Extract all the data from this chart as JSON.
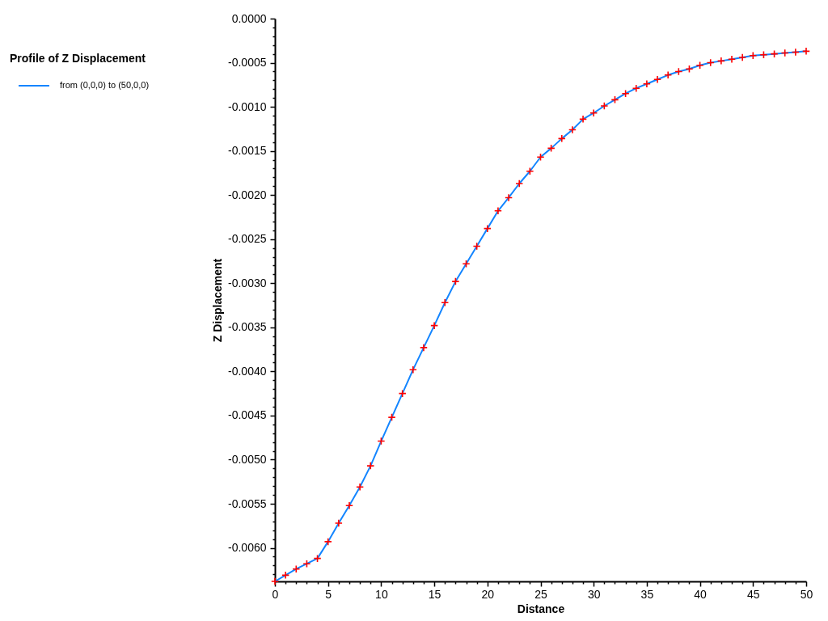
{
  "chart_data": {
    "type": "line",
    "legend_title": "Profile of Z Displacement",
    "xlabel": "Distance",
    "ylabel": "Z Displacement",
    "x": [
      0,
      1,
      2,
      3,
      4,
      5,
      6,
      7,
      8,
      9,
      10,
      11,
      12,
      13,
      14,
      15,
      16,
      17,
      18,
      19,
      20,
      21,
      22,
      23,
      24,
      25,
      26,
      27,
      28,
      29,
      30,
      31,
      32,
      33,
      34,
      35,
      36,
      37,
      38,
      39,
      40,
      41,
      42,
      43,
      44,
      45,
      46,
      47,
      48,
      49,
      50
    ],
    "series": [
      {
        "name": "from (0,0,0) to (50,0,0)",
        "color": "#1385ff",
        "values": [
          -0.00638,
          -0.00631,
          -0.00624,
          -0.00618,
          -0.00612,
          -0.00593,
          -0.00572,
          -0.00552,
          -0.00531,
          -0.00507,
          -0.00479,
          -0.00452,
          -0.00425,
          -0.00398,
          -0.00373,
          -0.00348,
          -0.00322,
          -0.00298,
          -0.00278,
          -0.00258,
          -0.00238,
          -0.00218,
          -0.00203,
          -0.00187,
          -0.00173,
          -0.00157,
          -0.00147,
          -0.00136,
          -0.00126,
          -0.00114,
          -0.00107,
          -0.00099,
          -0.00092,
          -0.00085,
          -0.00079,
          -0.00074,
          -0.00069,
          -0.00064,
          -0.0006,
          -0.00057,
          -0.00053,
          -0.0005,
          -0.00048,
          -0.00046,
          -0.00044,
          -0.00042,
          -0.00041,
          -0.0004,
          -0.00039,
          -0.00038,
          -0.00037
        ]
      }
    ],
    "xlim": [
      0,
      50
    ],
    "ylim": [
      -0.00638,
      0
    ],
    "xticks": [
      0,
      {
        "value": 1,
        "label": null
      },
      {
        "value": 2,
        "label": null
      },
      {
        "value": 3,
        "label": null
      },
      {
        "value": 4,
        "label": null
      },
      5,
      {
        "value": 6,
        "label": null
      },
      {
        "value": 7,
        "label": null
      },
      {
        "value": 8,
        "label": null
      },
      {
        "value": 9,
        "label": null
      },
      10,
      {
        "value": 11,
        "label": null
      },
      {
        "value": 12,
        "label": null
      },
      {
        "value": 13,
        "label": null
      },
      {
        "value": 14,
        "label": null
      },
      15,
      {
        "value": 16,
        "label": null
      },
      {
        "value": 17,
        "label": null
      },
      {
        "value": 18,
        "label": null
      },
      {
        "value": 19,
        "label": null
      },
      20,
      {
        "value": 21,
        "label": null
      },
      {
        "value": 22,
        "label": null
      },
      {
        "value": 23,
        "label": null
      },
      {
        "value": 24,
        "label": null
      },
      25,
      {
        "value": 26,
        "label": null
      },
      {
        "value": 27,
        "label": null
      },
      {
        "value": 28,
        "label": null
      },
      {
        "value": 29,
        "label": null
      },
      30,
      {
        "value": 31,
        "label": null
      },
      {
        "value": 32,
        "label": null
      },
      {
        "value": 33,
        "label": null
      },
      {
        "value": 34,
        "label": null
      },
      35,
      {
        "value": 36,
        "label": null
      },
      {
        "value": 37,
        "label": null
      },
      {
        "value": 38,
        "label": null
      },
      {
        "value": 39,
        "label": null
      },
      40,
      {
        "value": 41,
        "label": null
      },
      {
        "value": 42,
        "label": null
      },
      {
        "value": 43,
        "label": null
      },
      {
        "value": 44,
        "label": null
      },
      45,
      {
        "value": 46,
        "label": null
      },
      {
        "value": 47,
        "label": null
      },
      {
        "value": 48,
        "label": null
      },
      {
        "value": 49,
        "label": null
      },
      50
    ],
    "yticks": [
      {
        "value": 0,
        "label": "0.0000"
      },
      {
        "value": -0.0001,
        "label": null
      },
      {
        "value": -0.0002,
        "label": null
      },
      {
        "value": -0.0003,
        "label": null
      },
      {
        "value": -0.0004,
        "label": null
      },
      {
        "value": -0.0005,
        "label": "-0.0005"
      },
      {
        "value": -0.0006,
        "label": null
      },
      {
        "value": -0.0007,
        "label": null
      },
      {
        "value": -0.0008,
        "label": null
      },
      {
        "value": -0.0009,
        "label": null
      },
      {
        "value": -0.001,
        "label": "-0.0010"
      },
      {
        "value": -0.0011,
        "label": null
      },
      {
        "value": -0.0012,
        "label": null
      },
      {
        "value": -0.0013,
        "label": null
      },
      {
        "value": -0.0014,
        "label": null
      },
      {
        "value": -0.0015,
        "label": "-0.0015"
      },
      {
        "value": -0.0016,
        "label": null
      },
      {
        "value": -0.0017,
        "label": null
      },
      {
        "value": -0.0018,
        "label": null
      },
      {
        "value": -0.0019,
        "label": null
      },
      {
        "value": -0.002,
        "label": "-0.0020"
      },
      {
        "value": -0.0021,
        "label": null
      },
      {
        "value": -0.0022,
        "label": null
      },
      {
        "value": -0.0023,
        "label": null
      },
      {
        "value": -0.0024,
        "label": null
      },
      {
        "value": -0.0025,
        "label": "-0.0025"
      },
      {
        "value": -0.0026,
        "label": null
      },
      {
        "value": -0.0027,
        "label": null
      },
      {
        "value": -0.0028,
        "label": null
      },
      {
        "value": -0.0029,
        "label": null
      },
      {
        "value": -0.003,
        "label": "-0.0030"
      },
      {
        "value": -0.0031,
        "label": null
      },
      {
        "value": -0.0032,
        "label": null
      },
      {
        "value": -0.0033,
        "label": null
      },
      {
        "value": -0.0034,
        "label": null
      },
      {
        "value": -0.0035,
        "label": "-0.0035"
      },
      {
        "value": -0.0036,
        "label": null
      },
      {
        "value": -0.0037,
        "label": null
      },
      {
        "value": -0.0038,
        "label": null
      },
      {
        "value": -0.0039,
        "label": null
      },
      {
        "value": -0.004,
        "label": "-0.0040"
      },
      {
        "value": -0.0041,
        "label": null
      },
      {
        "value": -0.0042,
        "label": null
      },
      {
        "value": -0.0043,
        "label": null
      },
      {
        "value": -0.0044,
        "label": null
      },
      {
        "value": -0.0045,
        "label": "-0.0045"
      },
      {
        "value": -0.0046,
        "label": null
      },
      {
        "value": -0.0047,
        "label": null
      },
      {
        "value": -0.0048,
        "label": null
      },
      {
        "value": -0.0049,
        "label": null
      },
      {
        "value": -0.005,
        "label": "-0.0050"
      },
      {
        "value": -0.0051,
        "label": null
      },
      {
        "value": -0.0052,
        "label": null
      },
      {
        "value": -0.0053,
        "label": null
      },
      {
        "value": -0.0054,
        "label": null
      },
      {
        "value": -0.0055,
        "label": "-0.0055"
      },
      {
        "value": -0.0056,
        "label": null
      },
      {
        "value": -0.0057,
        "label": null
      },
      {
        "value": -0.0058,
        "label": null
      },
      {
        "value": -0.0059,
        "label": null
      },
      {
        "value": -0.006,
        "label": "-0.0060"
      },
      {
        "value": -0.0061,
        "label": null
      },
      {
        "value": -0.0062,
        "label": null
      },
      {
        "value": -0.0063,
        "label": null
      }
    ],
    "marker": "cross",
    "line_style": "solid",
    "grid": false,
    "legend": "top left"
  }
}
